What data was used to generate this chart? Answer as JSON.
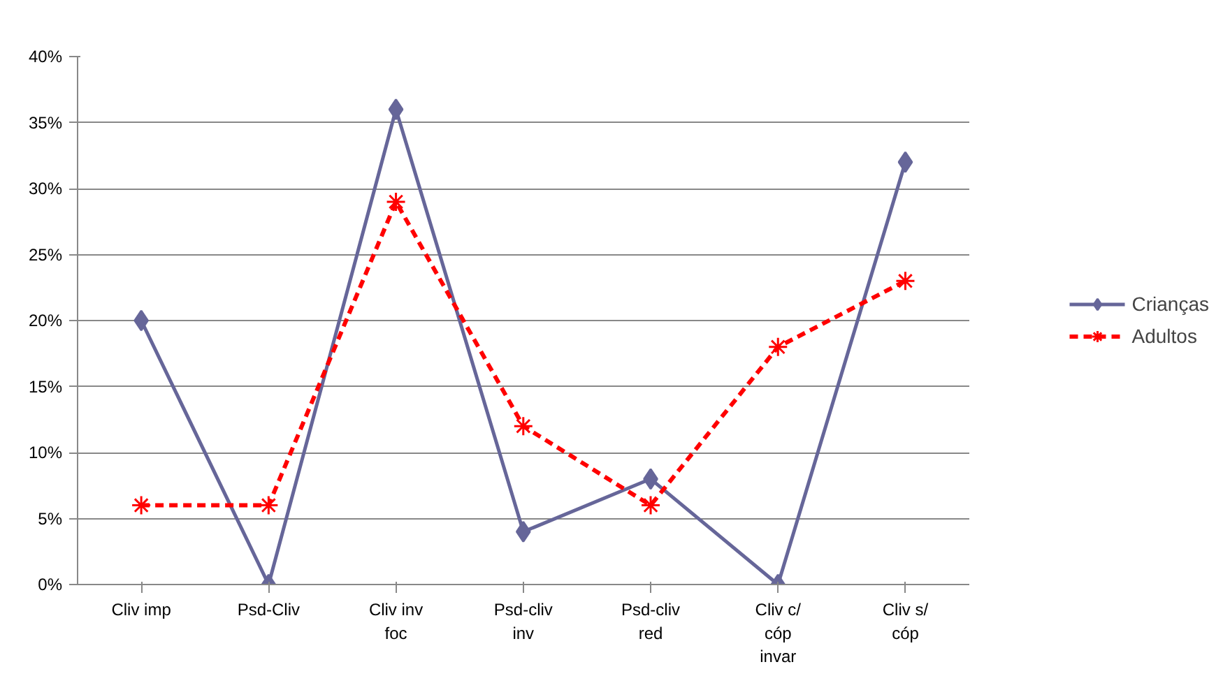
{
  "chart_data": {
    "type": "line",
    "categories": [
      "Cliv imp",
      "Psd-Cliv",
      "Cliv inv foc",
      "Psd-cliv inv",
      "Psd-cliv red",
      "Cliv c/ cóp invar",
      "Cliv s/ cóp"
    ],
    "series": [
      {
        "name": "Crianças",
        "color": "#666699",
        "marker": "diamond",
        "line_style": "solid",
        "values": [
          20,
          0,
          36,
          4,
          8,
          0,
          32
        ]
      },
      {
        "name": "Adultos",
        "color": "#ff0000",
        "marker": "cross",
        "line_style": "dashed",
        "values": [
          6,
          6,
          29,
          12,
          6,
          18,
          23
        ]
      }
    ],
    "ylim": [
      0,
      40
    ],
    "yticks": [
      {
        "value": 0,
        "label": "0%"
      },
      {
        "value": 5,
        "label": "5%"
      },
      {
        "value": 10,
        "label": "10%"
      },
      {
        "value": 15,
        "label": "15%"
      },
      {
        "value": 20,
        "label": "20%"
      },
      {
        "value": 25,
        "label": "25%"
      },
      {
        "value": 30,
        "label": "30%"
      },
      {
        "value": 35,
        "label": "35%"
      },
      {
        "value": 40,
        "label": "40%"
      }
    ],
    "grid": "y",
    "legend": "right"
  }
}
